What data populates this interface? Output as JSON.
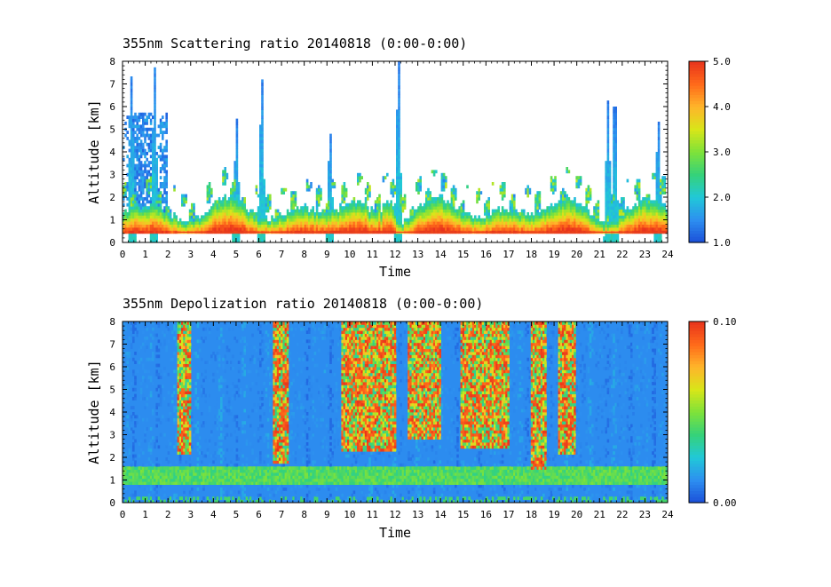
{
  "chart_data": [
    {
      "type": "heatmap",
      "title": "355nm Scattering ratio  20140818 (0:00-0:00)",
      "xlabel": "Time",
      "ylabel": "Altitude [km]",
      "xlim": [
        0,
        24
      ],
      "ylim": [
        0,
        8
      ],
      "x_ticks": [
        "0",
        "1",
        "2",
        "3",
        "4",
        "5",
        "6",
        "7",
        "8",
        "9",
        "10",
        "11",
        "12",
        "13",
        "14",
        "15",
        "16",
        "17",
        "18",
        "19",
        "20",
        "21",
        "22",
        "23",
        "24"
      ],
      "y_ticks": [
        "0",
        "1",
        "2",
        "3",
        "4",
        "5",
        "6",
        "7",
        "8"
      ],
      "colorbar": {
        "min": 1.0,
        "max": 5.0,
        "tick_labels": [
          "1.0",
          "2.0",
          "3.0",
          "4.0",
          "5.0"
        ],
        "colors": [
          "#1b4fd8",
          "#2d8ff0",
          "#21c8d8",
          "#35d27a",
          "#7ee23a",
          "#d8e619",
          "#ffb52a",
          "#ff6a1a",
          "#e8341c"
        ]
      },
      "features": {
        "boundary_layer_top_km": 1.3,
        "ground_line_km": 0.45,
        "tall_plumes": [
          {
            "time": 0.4,
            "top_km": 7.3
          },
          {
            "time": 1.4,
            "top_km": 7.8
          },
          {
            "time": 5.0,
            "top_km": 5.5
          },
          {
            "time": 6.1,
            "top_km": 7.2
          },
          {
            "time": 9.1,
            "top_km": 4.8
          },
          {
            "time": 12.1,
            "top_km": 8.0
          },
          {
            "time": 21.3,
            "top_km": 6.3
          },
          {
            "time": 21.6,
            "top_km": 6.0
          },
          {
            "time": 23.5,
            "top_km": 5.3
          }
        ]
      }
    },
    {
      "type": "heatmap",
      "title": "355nm Depolization ratio  20140818 (0:00-0:00)",
      "xlabel": "Time",
      "ylabel": "Altitude [km]",
      "xlim": [
        0,
        24
      ],
      "ylim": [
        0,
        8
      ],
      "x_ticks": [
        "0",
        "1",
        "2",
        "3",
        "4",
        "5",
        "6",
        "7",
        "8",
        "9",
        "10",
        "11",
        "12",
        "13",
        "14",
        "15",
        "16",
        "17",
        "18",
        "19",
        "20",
        "21",
        "22",
        "23",
        "24"
      ],
      "y_ticks": [
        "0",
        "1",
        "2",
        "3",
        "4",
        "5",
        "6",
        "7",
        "8"
      ],
      "colorbar": {
        "min": 0.0,
        "max": 0.1,
        "tick_labels": [
          "0.00",
          "0.10"
        ],
        "colors": [
          "#1b4fd8",
          "#2d8ff0",
          "#21c8d8",
          "#35d27a",
          "#7ee23a",
          "#d8e619",
          "#ffb52a",
          "#ff6a1a",
          "#e8341c"
        ]
      },
      "features": {
        "background_level": 0.01,
        "low_layer_km": 1.2,
        "high_depol_bands": [
          {
            "t0": 2.4,
            "t1": 3.0,
            "bottom_km": 2.2
          },
          {
            "t0": 6.6,
            "t1": 7.3,
            "bottom_km": 1.8
          },
          {
            "t0": 9.6,
            "t1": 12.0,
            "bottom_km": 2.3
          },
          {
            "t0": 12.5,
            "t1": 14.0,
            "bottom_km": 2.8
          },
          {
            "t0": 14.8,
            "t1": 17.0,
            "bottom_km": 2.4
          },
          {
            "t0": 17.9,
            "t1": 18.6,
            "bottom_km": 1.5
          },
          {
            "t0": 19.1,
            "t1": 19.9,
            "bottom_km": 2.2
          }
        ]
      }
    }
  ]
}
